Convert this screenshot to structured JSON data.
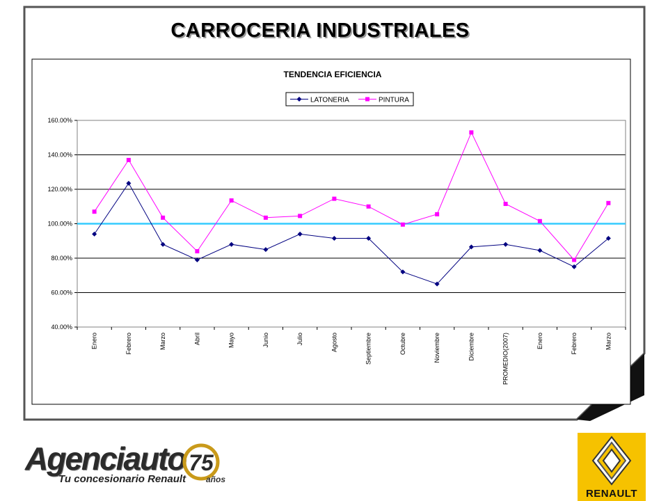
{
  "slide": {
    "title": "CARROCERIA INDUSTRIALES"
  },
  "chart_data": {
    "type": "line",
    "title": "TENDENCIA EFICIENCIA",
    "xlabel": "",
    "ylabel": "",
    "categories": [
      "Enero",
      "Febrero",
      "Marzo",
      "Abril",
      "Mayo",
      "Junio",
      "Julio",
      "Agosto",
      "Septiembre",
      "Octubre",
      "Noviembre",
      "Diciembre",
      "PROMEDIO(2007)",
      "Enero",
      "Febrero",
      "Marzo"
    ],
    "series": [
      {
        "name": "LATONERIA",
        "color": "#000080",
        "marker": "diamond",
        "values": [
          94,
          123.5,
          88,
          79,
          88,
          85,
          94,
          91.5,
          91.5,
          72,
          65,
          86.5,
          88,
          84.5,
          75,
          91.5
        ]
      },
      {
        "name": "PINTURA",
        "color": "#ff00ff",
        "marker": "square",
        "values": [
          107,
          137,
          103.5,
          84,
          113.5,
          103.5,
          104.5,
          114.5,
          110,
          99.5,
          105.5,
          153,
          111.5,
          101.5,
          79,
          112
        ]
      }
    ],
    "ylim": [
      40,
      160
    ],
    "yticks": [
      40,
      60,
      80,
      100,
      120,
      140,
      160
    ],
    "ytick_labels": [
      "40.00%",
      "60.00%",
      "80.00%",
      "100.00%",
      "120.00%",
      "140.00%",
      "160.00%"
    ],
    "reference_line": {
      "value": 100,
      "color": "#33ccff"
    },
    "grid": true,
    "legend_position": "top-center"
  },
  "footer": {
    "agencia_brand": "Agenciauto",
    "agencia_tagline": "Tu concesionario Renault",
    "agencia_anniversary": "75",
    "agencia_anos": "años",
    "renault_brand": "RENAULT"
  }
}
